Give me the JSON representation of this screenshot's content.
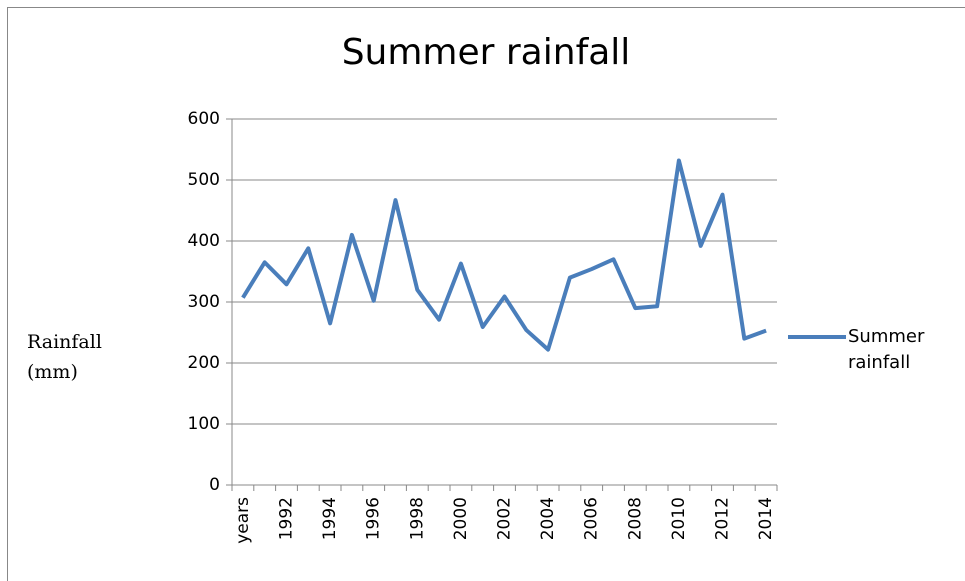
{
  "chart_data": {
    "type": "line",
    "title": "Summer rainfall",
    "y_label": "Rainfall (mm)",
    "categories": [
      "years",
      null,
      "1992",
      null,
      "1994",
      null,
      "1996",
      null,
      "1998",
      null,
      "2000",
      null,
      "2002",
      null,
      "2004",
      null,
      "2006",
      null,
      "2008",
      null,
      "2010",
      null,
      "2012",
      null,
      "2014"
    ],
    "series": [
      {
        "name": "Summer rainfall",
        "color": "#4a7ebb",
        "values": [
          307,
          365,
          329,
          388,
          265,
          410,
          302,
          467,
          320,
          271,
          363,
          259,
          309,
          254,
          222,
          340,
          354,
          370,
          290,
          293,
          532,
          392,
          476,
          240,
          253
        ]
      }
    ],
    "ylim": [
      0,
      600
    ],
    "yticks": [
      0,
      100,
      200,
      300,
      400,
      500,
      600
    ],
    "grid": true,
    "legend": "right"
  }
}
